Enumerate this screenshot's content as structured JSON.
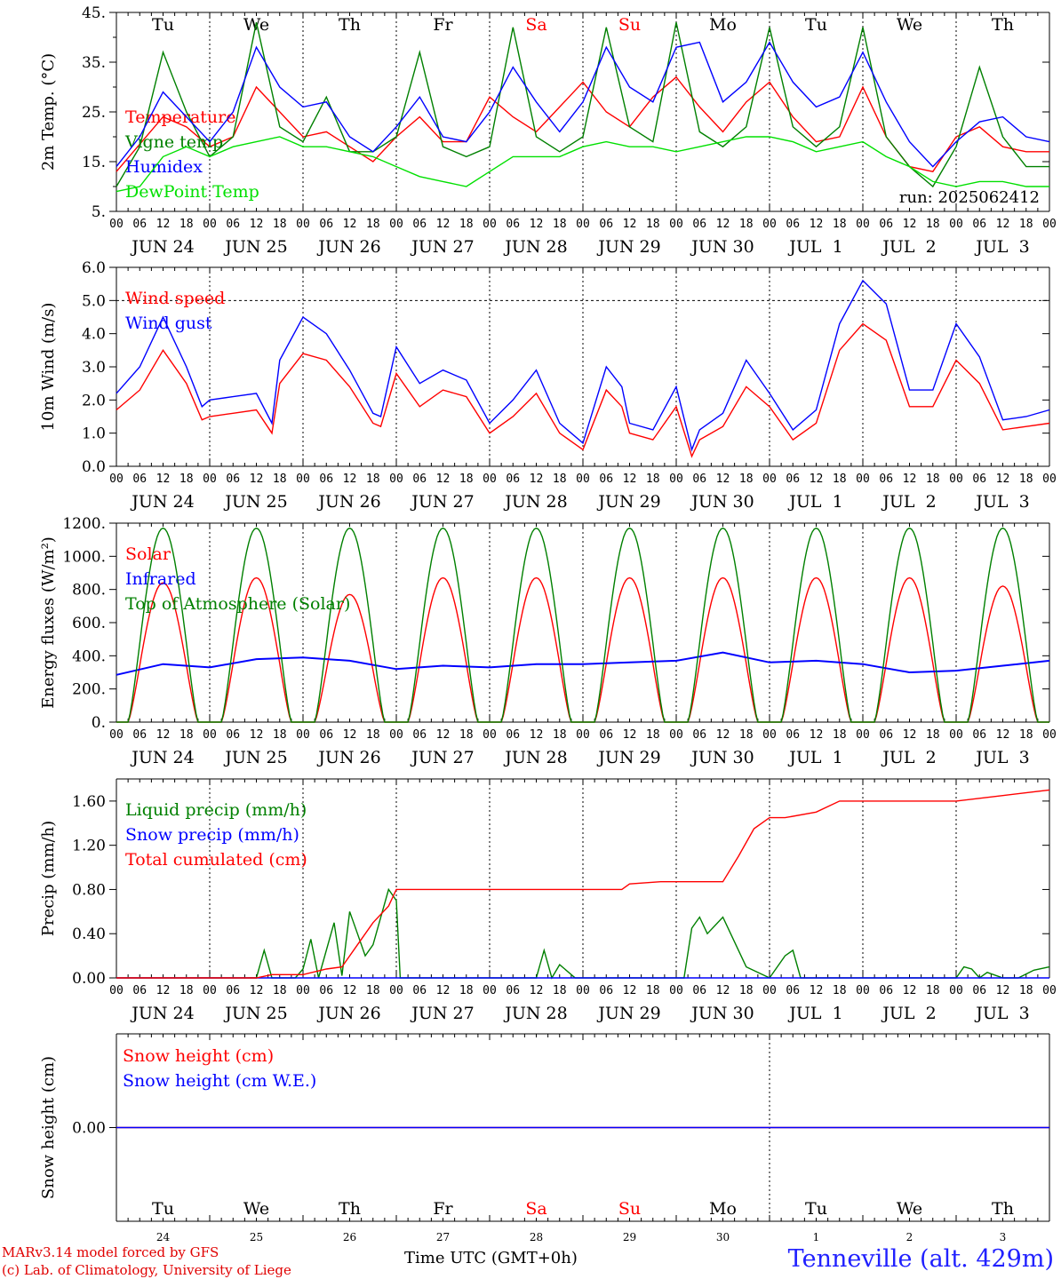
{
  "footer": {
    "credit_line1": "MARv3.14 model forced by GFS",
    "credit_line2": "(c) Lab. of Climatology, University of Liege",
    "station": "Tenneville (alt. 429m)",
    "xlabel": "Time UTC (GMT+0h)",
    "month_left": "JUN",
    "month_right": "JUL"
  },
  "colors": {
    "red": "#ff0000",
    "green": "#008000",
    "blue": "#0000ff",
    "light_green": "#00e000",
    "grid": "#000000"
  },
  "x_axis": {
    "hour_labels": [
      "00",
      "06",
      "12",
      "18"
    ],
    "date_labels": [
      "JUN 24",
      "JUN 25",
      "JUN 26",
      "JUN 27",
      "JUN 28",
      "JUN 29",
      "JUN 30",
      "JUL  1",
      "JUL  2",
      "JUL  3"
    ],
    "weekday_labels": [
      "Tu",
      "We",
      "Th",
      "Fr",
      "Sa",
      "Su",
      "Mo",
      "Tu",
      "We",
      "Th"
    ],
    "weekend_indices": [
      4,
      5
    ],
    "day_numbers": [
      "24",
      "25",
      "26",
      "27",
      "28",
      "29",
      "30",
      "1",
      "2",
      "3"
    ],
    "days": 10,
    "month_break_day": 7
  },
  "chart_data": [
    {
      "type": "line",
      "id": "temp",
      "ylabel": "2m Temp. (°C)",
      "ylim": [
        5,
        45
      ],
      "yticks": [
        5,
        15,
        25,
        35,
        45
      ],
      "ytick_labels": [
        "5.",
        "15.",
        "25.",
        "35.",
        "45."
      ],
      "run_label": "run: 2025062412",
      "show_weekdays": true,
      "x_unit": "hours since Jun 24 00 UTC",
      "series": [
        {
          "name": "Temperature",
          "color": "#ff0000",
          "x": [
            0,
            12,
            18,
            24,
            30,
            36,
            42,
            48,
            54,
            60,
            66,
            72,
            78,
            84,
            90,
            96,
            102,
            108,
            114,
            120,
            126,
            132,
            138,
            144,
            150,
            156,
            162,
            168,
            174,
            180,
            186,
            192,
            198,
            204,
            210,
            216,
            222,
            228,
            234,
            240
          ],
          "y": [
            13,
            24,
            22,
            18,
            20,
            30,
            25,
            20,
            21,
            18,
            15,
            20,
            24,
            19,
            19,
            28,
            24,
            21,
            26,
            31,
            25,
            22,
            28,
            32,
            26,
            21,
            27,
            31,
            24,
            19,
            20,
            30,
            20,
            14,
            13,
            20,
            22,
            18,
            17,
            17
          ]
        },
        {
          "name": "Vigne temp",
          "color": "#008000",
          "x": [
            0,
            6,
            12,
            18,
            24,
            30,
            36,
            42,
            48,
            54,
            60,
            66,
            72,
            78,
            84,
            90,
            96,
            102,
            108,
            114,
            120,
            126,
            132,
            138,
            144,
            150,
            156,
            162,
            168,
            174,
            180,
            186,
            192,
            198,
            204,
            210,
            216,
            222,
            228,
            234,
            240
          ],
          "y": [
            10,
            18,
            37,
            25,
            16,
            20,
            43,
            22,
            19,
            28,
            17,
            17,
            20,
            37,
            18,
            16,
            18,
            42,
            20,
            17,
            20,
            42,
            22,
            19,
            43,
            21,
            18,
            22,
            42,
            22,
            18,
            22,
            42,
            20,
            14,
            10,
            18,
            34,
            20,
            14,
            14
          ]
        },
        {
          "name": "Humidex",
          "color": "#0000ff",
          "x": [
            0,
            6,
            12,
            18,
            24,
            30,
            36,
            42,
            48,
            54,
            60,
            66,
            72,
            78,
            84,
            90,
            96,
            102,
            108,
            114,
            120,
            126,
            132,
            138,
            144,
            150,
            156,
            162,
            168,
            174,
            180,
            186,
            192,
            198,
            204,
            210,
            216,
            222,
            228,
            234,
            240
          ],
          "y": [
            14,
            20,
            29,
            24,
            19,
            25,
            38,
            30,
            26,
            27,
            20,
            17,
            22,
            28,
            20,
            19,
            25,
            34,
            27,
            21,
            27,
            38,
            30,
            27,
            38,
            39,
            27,
            31,
            39,
            31,
            26,
            28,
            37,
            27,
            19,
            14,
            19,
            23,
            24,
            20,
            19
          ]
        },
        {
          "name": "DewPoint Temp",
          "color": "#00e000",
          "x": [
            0,
            6,
            12,
            18,
            24,
            30,
            36,
            42,
            48,
            54,
            60,
            66,
            72,
            78,
            84,
            90,
            96,
            102,
            108,
            114,
            120,
            126,
            132,
            138,
            144,
            150,
            156,
            162,
            168,
            174,
            180,
            186,
            192,
            198,
            204,
            210,
            216,
            222,
            228,
            234,
            240
          ],
          "y": [
            9,
            10,
            16,
            18,
            16,
            18,
            19,
            20,
            18,
            18,
            17,
            16,
            14,
            12,
            11,
            10,
            13,
            16,
            16,
            16,
            18,
            19,
            18,
            18,
            17,
            18,
            19,
            20,
            20,
            19,
            17,
            18,
            19,
            16,
            14,
            11,
            10,
            11,
            11,
            10,
            10
          ]
        }
      ]
    },
    {
      "type": "line",
      "id": "wind",
      "ylabel": "10m Wind (m/s)",
      "ylim": [
        0,
        6
      ],
      "yticks": [
        0,
        1,
        2,
        3,
        4,
        5,
        6
      ],
      "ytick_labels": [
        "0.0",
        "1.0",
        "2.0",
        "3.0",
        "4.0",
        "5.0",
        "6.0"
      ],
      "dashed_ref": 5,
      "x_unit": "hours since Jun 24 00 UTC",
      "series": [
        {
          "name": "Wind speed",
          "color": "#ff0000",
          "x": [
            0,
            6,
            12,
            18,
            22,
            24,
            30,
            36,
            40,
            42,
            48,
            54,
            60,
            66,
            68,
            72,
            78,
            84,
            90,
            96,
            102,
            108,
            114,
            120,
            126,
            130,
            132,
            138,
            144,
            148,
            150,
            156,
            162,
            168,
            174,
            180,
            186,
            192,
            198,
            204,
            210,
            216,
            222,
            228,
            234,
            240
          ],
          "y": [
            1.7,
            2.3,
            3.5,
            2.5,
            1.4,
            1.5,
            1.6,
            1.7,
            1.0,
            2.5,
            3.4,
            3.2,
            2.4,
            1.3,
            1.2,
            2.8,
            1.8,
            2.3,
            2.1,
            1.0,
            1.5,
            2.2,
            1.0,
            0.5,
            2.3,
            1.8,
            1.0,
            0.8,
            1.8,
            0.3,
            0.8,
            1.2,
            2.4,
            1.8,
            0.8,
            1.3,
            3.5,
            4.3,
            3.8,
            1.8,
            1.8,
            3.2,
            2.5,
            1.1,
            1.2,
            1.3
          ]
        },
        {
          "name": "Wind gust",
          "color": "#0000ff",
          "x": [
            0,
            6,
            12,
            18,
            22,
            24,
            30,
            36,
            40,
            42,
            48,
            54,
            60,
            66,
            68,
            72,
            78,
            84,
            90,
            96,
            102,
            108,
            114,
            120,
            126,
            130,
            132,
            138,
            144,
            148,
            150,
            156,
            162,
            168,
            174,
            180,
            186,
            192,
            198,
            204,
            210,
            216,
            222,
            228,
            234,
            240
          ],
          "y": [
            2.2,
            3.0,
            4.5,
            3.0,
            1.8,
            2.0,
            2.1,
            2.2,
            1.3,
            3.2,
            4.5,
            4.0,
            2.9,
            1.6,
            1.5,
            3.6,
            2.5,
            2.9,
            2.6,
            1.3,
            2.0,
            2.9,
            1.3,
            0.7,
            3.0,
            2.4,
            1.3,
            1.1,
            2.4,
            0.5,
            1.1,
            1.6,
            3.2,
            2.2,
            1.1,
            1.7,
            4.3,
            5.6,
            4.9,
            2.3,
            2.3,
            4.3,
            3.3,
            1.4,
            1.5,
            1.7
          ]
        }
      ]
    },
    {
      "type": "line",
      "id": "energy",
      "ylabel": "Energy fluxes (W/m²)",
      "ylim": [
        0,
        1200
      ],
      "yticks": [
        0,
        200,
        400,
        600,
        800,
        1000,
        1200
      ],
      "ytick_labels": [
        "0.",
        "200.",
        "400.",
        "600.",
        "800.",
        "1000.",
        "1200."
      ],
      "x_unit": "hours since day 00 UTC (one diurnal cycle, repeated daily)",
      "series": [
        {
          "name": "Solar",
          "color": "#ff0000",
          "daily_peak": [
            840,
            870,
            770,
            870,
            870,
            870,
            870,
            870,
            870,
            820
          ]
        },
        {
          "name": "Infrared",
          "color": "#0000ff",
          "x": [
            0,
            12,
            24,
            36,
            48,
            60,
            72,
            84,
            96,
            108,
            120,
            132,
            144,
            156,
            168,
            180,
            192,
            204,
            216,
            228,
            240
          ],
          "y": [
            285,
            350,
            330,
            380,
            390,
            370,
            320,
            340,
            330,
            350,
            350,
            360,
            370,
            420,
            360,
            370,
            350,
            300,
            310,
            340,
            370
          ]
        },
        {
          "name": "Top of Atmosphere (Solar)",
          "color": "#008000",
          "daily_peak": [
            1170,
            1170,
            1170,
            1170,
            1170,
            1170,
            1170,
            1170,
            1170,
            1170
          ]
        }
      ]
    },
    {
      "type": "line",
      "id": "precip",
      "ylabel": "Precip (mm/h)",
      "ylim": [
        0,
        1.8
      ],
      "yticks": [
        0,
        0.4,
        0.8,
        1.2,
        1.6
      ],
      "ytick_labels": [
        "0.00",
        "0.40",
        "0.80",
        "1.20",
        "1.60"
      ],
      "x_unit": "hours since Jun 24 00 UTC",
      "series": [
        {
          "name": "Liquid precip (mm/h)",
          "color": "#008000",
          "x": [
            0,
            36,
            38,
            40,
            46,
            48,
            50,
            52,
            56,
            58,
            60,
            62,
            64,
            66,
            70,
            72,
            73,
            74,
            76,
            78,
            80,
            82,
            84,
            86,
            88,
            90,
            92,
            94,
            96,
            100,
            102,
            104,
            106,
            108,
            110,
            112,
            114,
            118,
            120,
            122,
            124,
            126,
            128,
            132,
            144,
            146,
            148,
            150,
            152,
            156,
            162,
            168,
            172,
            174,
            176,
            178,
            180,
            182,
            192,
            210,
            214,
            216,
            218,
            220,
            222,
            224,
            228,
            232,
            236,
            240
          ],
          "y": [
            0,
            0,
            0.25,
            0,
            0,
            0.08,
            0.35,
            0,
            0.5,
            0.02,
            0.6,
            0.4,
            0.2,
            0.3,
            0.8,
            0.7,
            0,
            0,
            0,
            0,
            0,
            0,
            0,
            0,
            0,
            0,
            0,
            0,
            0,
            0,
            0,
            0,
            0,
            0,
            0.25,
            0,
            0.12,
            0,
            0,
            0,
            0,
            0,
            0,
            0,
            0,
            0,
            0.45,
            0.55,
            0.4,
            0.55,
            0.1,
            0,
            0.2,
            0.25,
            0,
            0,
            0,
            0,
            0,
            0,
            0,
            0,
            0.1,
            0.08,
            0,
            0.05,
            0,
            0,
            0.07,
            0.1
          ]
        },
        {
          "name": "Snow precip (mm/h)",
          "color": "#0000ff",
          "x": [
            0,
            240
          ],
          "y": [
            0,
            0
          ]
        },
        {
          "name": "Total cumulated (cm)",
          "color": "#ff0000",
          "x": [
            0,
            36,
            40,
            48,
            54,
            58,
            62,
            66,
            70,
            72,
            74,
            84,
            96,
            108,
            120,
            130,
            132,
            140,
            144,
            156,
            160,
            164,
            168,
            172,
            180,
            186,
            204,
            216,
            228,
            240
          ],
          "y": [
            0,
            0,
            0.03,
            0.03,
            0.08,
            0.1,
            0.3,
            0.5,
            0.65,
            0.8,
            0.8,
            0.8,
            0.8,
            0.8,
            0.8,
            0.8,
            0.85,
            0.87,
            0.87,
            0.87,
            1.1,
            1.35,
            1.45,
            1.45,
            1.5,
            1.6,
            1.6,
            1.6,
            1.65,
            1.7
          ]
        }
      ]
    },
    {
      "type": "line",
      "id": "snow",
      "ylabel": "Snow height (cm)",
      "ylim": [
        -1,
        1
      ],
      "yticks": [
        0
      ],
      "ytick_labels": [
        "0.00"
      ],
      "x_unit": "hours since Jun 24 00 UTC",
      "series": [
        {
          "name": "Snow height (cm)",
          "color": "#ff0000",
          "x": [
            0,
            240
          ],
          "y": [
            0,
            0
          ]
        },
        {
          "name": "Snow height (cm W.E.)",
          "color": "#0000ff",
          "x": [
            0,
            240
          ],
          "y": [
            0,
            0
          ]
        }
      ]
    }
  ]
}
